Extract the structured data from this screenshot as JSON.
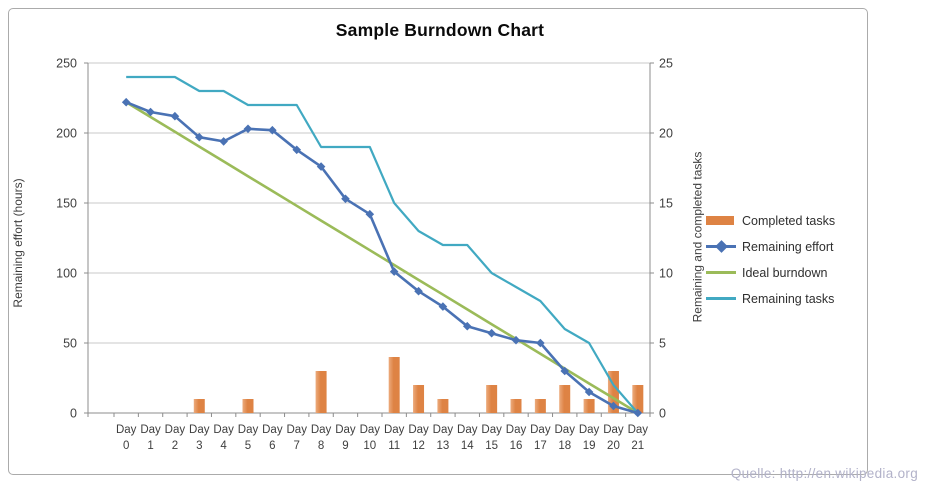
{
  "title": "Sample Burndown Chart",
  "watermark": "Quelle: http://en.wikipedia.org",
  "axes": {
    "left_label": "Remaining effort (hours)",
    "right_label": "Remaining and  completed tasks",
    "left_ticks": [
      0,
      50,
      100,
      150,
      200,
      250
    ],
    "right_ticks": [
      0,
      5,
      10,
      15,
      20,
      25
    ],
    "left_range": [
      0,
      250
    ],
    "right_range": [
      0,
      25
    ]
  },
  "legend": [
    {
      "label": "Completed tasks",
      "swatch": "bar"
    },
    {
      "label": "Remaining effort",
      "swatch": "line-diamond"
    },
    {
      "label": "Ideal burndown",
      "swatch": "line"
    },
    {
      "label": "Remaining tasks",
      "swatch": "line"
    }
  ],
  "colors": {
    "completed_tasks": "#de8344",
    "completed_tasks_light": "#ecab7d",
    "remaining_effort": "#4a72b4",
    "ideal_burndown": "#9bbb59",
    "remaining_tasks": "#41a9c2",
    "gridline": "#c9c9c9",
    "axis_line": "#8c8c8c",
    "tick_text": "#3f3f3f"
  },
  "chart_data": {
    "type": "combo",
    "title": "Sample Burndown Chart",
    "x": [
      "Day 0",
      "Day 1",
      "Day 2",
      "Day 3",
      "Day 4",
      "Day 5",
      "Day 6",
      "Day 7",
      "Day 8",
      "Day 9",
      "Day 10",
      "Day 11",
      "Day 12",
      "Day 13",
      "Day 14",
      "Day 15",
      "Day 16",
      "Day 17",
      "Day 18",
      "Day 19",
      "Day 20",
      "Day 21"
    ],
    "xlabel": "",
    "ylabel_left": "Remaining effort (hours)",
    "ylabel_right": "Remaining and  completed tasks",
    "ylim_left": [
      0,
      250
    ],
    "ylim_right": [
      0,
      25
    ],
    "grid": true,
    "legend_position": "right",
    "series": [
      {
        "name": "Completed tasks",
        "type": "bar",
        "axis": "right",
        "values": [
          0,
          0,
          0,
          1,
          0,
          1,
          0,
          0,
          3,
          0,
          0,
          4,
          2,
          1,
          0,
          2,
          1,
          1,
          2,
          1,
          3,
          2
        ]
      },
      {
        "name": "Remaining effort",
        "type": "line",
        "marker": "diamond",
        "axis": "left",
        "values": [
          222,
          215,
          212,
          197,
          194,
          203,
          202,
          188,
          176,
          153,
          142,
          101,
          87,
          76,
          62,
          57,
          52,
          50,
          30,
          15,
          5,
          0
        ]
      },
      {
        "name": "Ideal burndown",
        "type": "line",
        "marker": "none",
        "axis": "left",
        "values": [
          222,
          211.4,
          200.9,
          190.3,
          179.7,
          169.1,
          158.6,
          148,
          137.4,
          126.9,
          116.3,
          105.7,
          95.1,
          84.6,
          74,
          63.4,
          52.9,
          42.3,
          31.7,
          21.1,
          10.6,
          0
        ]
      },
      {
        "name": "Remaining tasks",
        "type": "line",
        "marker": "none",
        "axis": "right",
        "values": [
          24,
          24,
          24,
          23,
          23,
          22,
          22,
          22,
          19,
          19,
          19,
          15,
          13,
          12,
          12,
          10,
          9,
          8,
          6,
          5,
          2,
          0
        ]
      }
    ]
  }
}
